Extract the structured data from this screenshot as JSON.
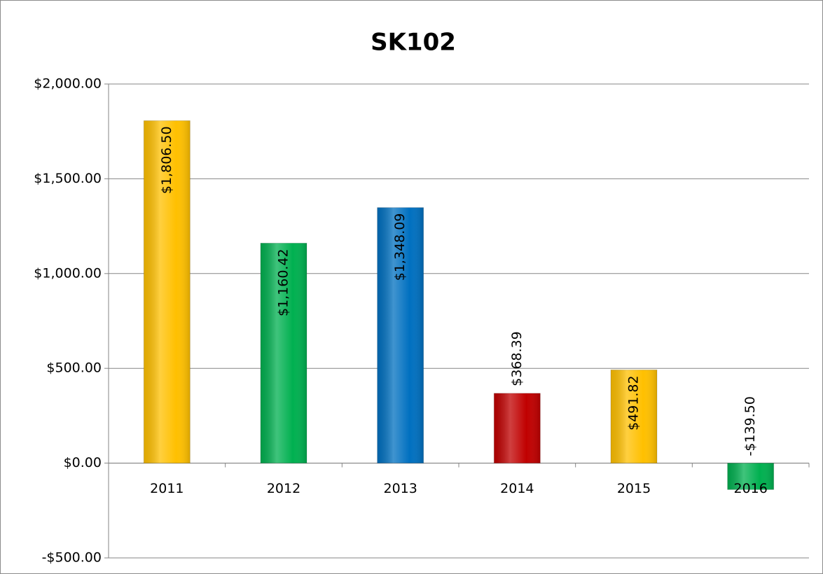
{
  "chart_data": {
    "type": "bar",
    "title": "SK102",
    "categories": [
      "2011",
      "2012",
      "2013",
      "2014",
      "2015",
      "2016"
    ],
    "values": [
      1806.5,
      1160.42,
      1348.09,
      368.39,
      491.82,
      -139.5
    ],
    "value_labels": [
      "$1,806.50",
      "$1,160.42",
      "$1,348.09",
      "$368.39",
      "$491.82",
      "-$139.50"
    ],
    "colors": [
      "#ffc000",
      "#00b050",
      "#0070c0",
      "#c00000",
      "#ffc000",
      "#00b050"
    ],
    "ylim": [
      -500,
      2000
    ],
    "yticks": [
      {
        "value": -500,
        "label": "-$500.00"
      },
      {
        "value": 0,
        "label": "$0.00"
      },
      {
        "value": 500,
        "label": "$500.00"
      },
      {
        "value": 1000,
        "label": "$1,000.00"
      },
      {
        "value": 1500,
        "label": "$1,500.00"
      },
      {
        "value": 2000,
        "label": "$2,000.00"
      }
    ],
    "grid": true
  }
}
